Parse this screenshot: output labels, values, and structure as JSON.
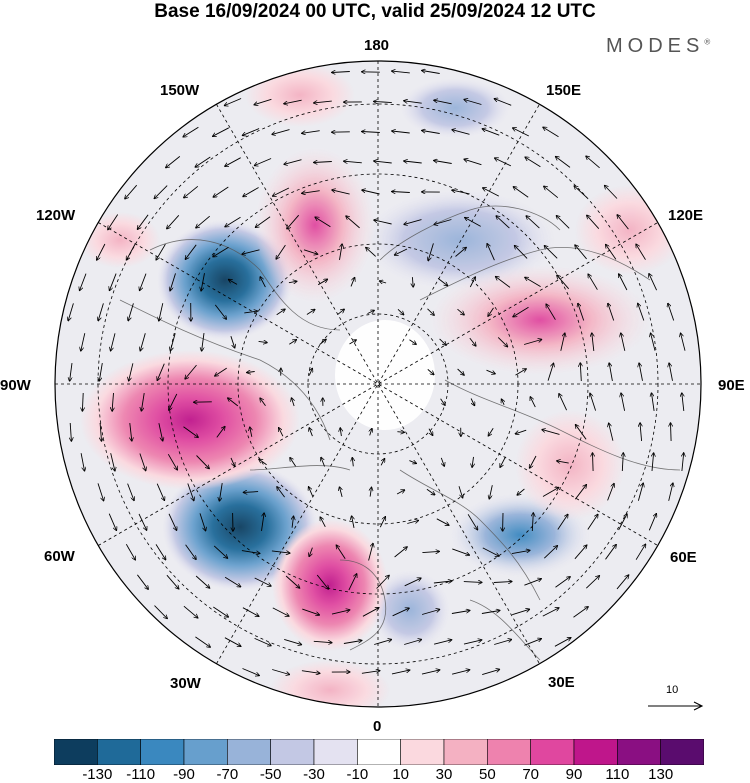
{
  "title": "Base 16/09/2024 00 UTC, valid 25/09/2024 12 UTC",
  "brand": "MODES",
  "brand_mark": "®",
  "longitude_labels": {
    "lon_180": "180",
    "lon_150E": "150E",
    "lon_120E": "120E",
    "lon_90E": "90E",
    "lon_60E": "60E",
    "lon_30E": "30E",
    "lon_0": "0",
    "lon_30W": "30W",
    "lon_60W": "60W",
    "lon_90W": "90W",
    "lon_120W": "120W",
    "lon_150W": "150W"
  },
  "vector_scale_label": "10",
  "colorbar": {
    "ticks": [
      "-130",
      "-110",
      "-90",
      "-70",
      "-50",
      "-30",
      "-10",
      "10",
      "30",
      "50",
      "70",
      "90",
      "110",
      "130"
    ],
    "colors": [
      "#0d3d5e",
      "#1f6a99",
      "#3a88bf",
      "#679fcd",
      "#98b3d9",
      "#c3c8e4",
      "#e4e2f1",
      "#ffffff",
      "#fbd9df",
      "#f4b1c2",
      "#ee82ae",
      "#e0479f",
      "#bf168b",
      "#8a0f82",
      "#5a0c6e"
    ]
  },
  "map_colors": {
    "land_outline": "#555555",
    "grid_line": "#000000",
    "blue_strong": "#1f6a99",
    "pink_strong": "#d6339a"
  }
}
